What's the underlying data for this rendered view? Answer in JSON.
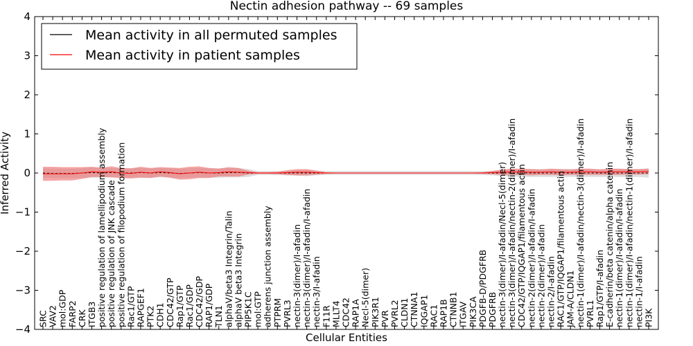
{
  "chart_data": {
    "type": "line",
    "title": "Nectin adhesion pathway -- 69 samples",
    "xlabel": "Cellular Entities",
    "ylabel": "Inferred Activity",
    "ylim": [
      -4,
      4
    ],
    "yticks": [
      -4,
      -3,
      -2,
      -1,
      0,
      1,
      2,
      3,
      4
    ],
    "ytick_labels": [
      "−4",
      "−3",
      "−2",
      "−1",
      "0",
      "1",
      "2",
      "3",
      "4"
    ],
    "legend_position": "top-left",
    "categories": [
      "SRC",
      "VAV2",
      "mol:GDP",
      "FARP2",
      "CRK",
      "ITGB3",
      "positive regulation of lamellipodium assembly",
      "positive regulation of JNK cascade",
      "positive regulation of filopodium formation",
      "Rac1/GTP",
      "RAPGEF1",
      "PTK2",
      "CDH1",
      "CDC42/GTP",
      "Rap1/GTP",
      "Rac1/GDP",
      "CDC42/GDP",
      "RAP1/GDP",
      "TLN1",
      "alphaV/beta3 Integrin/Talin",
      "alphaV beta3 Integrin",
      "PIP5K1C",
      "mol:GTP",
      "adherens junction assembly",
      "PTPRM",
      "PVRL3",
      "nectin-3(dimer)/I-afadin",
      "nectin-3(dimer)/I-afadin/I-afadin",
      "nectin-3/I-afadin",
      "F11R",
      "MLLT4",
      "CDC42",
      "RAP1A",
      "Necl-5(dimer)",
      "PIK3R1",
      "PVR",
      "PVRL2",
      "CLDN1",
      "CTNNA1",
      "IQGAP1",
      "RAC1",
      "RAP1B",
      "CTNNB1",
      "ITGAV",
      "PIK3CA",
      "PDGFB-D/PDGFRB",
      "PDGFRB",
      "nectin-3(dimer)/I-afadin/Necl-5(dimer)",
      "nectin-3(dimer)/I-afadin/nectin-2(dimer)/I-afadin",
      "CDC42/GTP/IQGAP1/filamentous actin",
      "nectin-2(dimer)/I-afadin/I-afadin",
      "nectin-2(dimer)/I-afadin",
      "nectin-2/I-afadin",
      "RAC1/GTP/IQGAP1/filamentous actin",
      "JAM-A/CLDN1",
      "nectin-1(dimer)/I-afadin/nectin-3(dimer)/I-afadin",
      "PVRL1",
      "Rap1/GTP/I-afadin",
      "E-cadherin/beta catenin/alpha catenin",
      "nectin-1(dimer)/I-afadin/I-afadin",
      "nectin-1(dimer)/I-afadin/nectin-1(dimer)/I-afadin",
      "nectin-1/I-afadin",
      "PI3K"
    ],
    "series": [
      {
        "name": "Mean activity in all permuted samples",
        "color": "#000000",
        "values": [
          0.0,
          -0.01,
          -0.01,
          -0.01,
          0.0,
          0.01,
          0.0,
          0.01,
          0.0,
          0.0,
          0.01,
          0.0,
          0.01,
          0.0,
          -0.01,
          0.0,
          0.01,
          0.0,
          0.0,
          0.01,
          0.01,
          0.0,
          0.0,
          0.0,
          0.0,
          0.0,
          0.0,
          0.0,
          0.0,
          0.0,
          0.0,
          0.0,
          0.0,
          0.0,
          0.0,
          0.0,
          0.0,
          0.0,
          0.0,
          0.0,
          0.0,
          0.0,
          0.0,
          0.0,
          0.0,
          0.0,
          0.0,
          0.0,
          0.0,
          0.0,
          0.0,
          0.0,
          0.0,
          0.0,
          0.0,
          0.0,
          0.0,
          0.0,
          0.0,
          0.0,
          0.0,
          0.0,
          0.0
        ],
        "band": [
          0.12,
          0.12,
          0.12,
          0.12,
          0.12,
          0.13,
          0.12,
          0.12,
          0.12,
          0.12,
          0.12,
          0.12,
          0.12,
          0.12,
          0.12,
          0.12,
          0.12,
          0.12,
          0.12,
          0.12,
          0.12,
          0.1,
          0.05,
          0.05,
          0.05,
          0.06,
          0.07,
          0.08,
          0.06,
          0.05,
          0.05,
          0.05,
          0.05,
          0.05,
          0.05,
          0.05,
          0.05,
          0.05,
          0.05,
          0.05,
          0.05,
          0.05,
          0.05,
          0.05,
          0.05,
          0.05,
          0.06,
          0.08,
          0.09,
          0.1,
          0.1,
          0.1,
          0.1,
          0.1,
          0.1,
          0.1,
          0.1,
          0.1,
          0.1,
          0.1,
          0.1,
          0.1,
          0.12
        ]
      },
      {
        "name": "Mean activity in patient samples",
        "color": "#ff0000",
        "values": [
          -0.02,
          -0.02,
          -0.02,
          -0.02,
          0.0,
          0.03,
          0.02,
          0.03,
          0.0,
          -0.01,
          0.02,
          0.0,
          0.03,
          0.01,
          -0.02,
          0.0,
          0.02,
          0.0,
          0.01,
          0.03,
          0.02,
          0.01,
          0.0,
          0.0,
          0.0,
          0.01,
          0.02,
          0.02,
          0.01,
          0.0,
          0.0,
          0.0,
          0.0,
          0.0,
          0.0,
          0.0,
          0.0,
          0.0,
          0.0,
          0.0,
          0.0,
          0.0,
          0.0,
          0.0,
          0.0,
          0.0,
          0.01,
          0.02,
          0.03,
          0.03,
          0.02,
          0.02,
          0.03,
          0.02,
          0.02,
          0.03,
          0.03,
          0.02,
          0.03,
          0.03,
          0.03,
          0.03,
          0.04
        ],
        "band": [
          0.18,
          0.18,
          0.17,
          0.17,
          0.15,
          0.13,
          0.12,
          0.14,
          0.13,
          0.13,
          0.14,
          0.13,
          0.12,
          0.13,
          0.15,
          0.16,
          0.15,
          0.13,
          0.1,
          0.12,
          0.11,
          0.05,
          0.02,
          0.02,
          0.03,
          0.06,
          0.08,
          0.08,
          0.05,
          0.02,
          0.01,
          0.01,
          0.01,
          0.01,
          0.01,
          0.01,
          0.01,
          0.01,
          0.01,
          0.01,
          0.01,
          0.01,
          0.01,
          0.01,
          0.01,
          0.02,
          0.04,
          0.07,
          0.08,
          0.08,
          0.08,
          0.07,
          0.08,
          0.08,
          0.07,
          0.08,
          0.08,
          0.07,
          0.08,
          0.08,
          0.07,
          0.07,
          0.07
        ]
      }
    ]
  }
}
